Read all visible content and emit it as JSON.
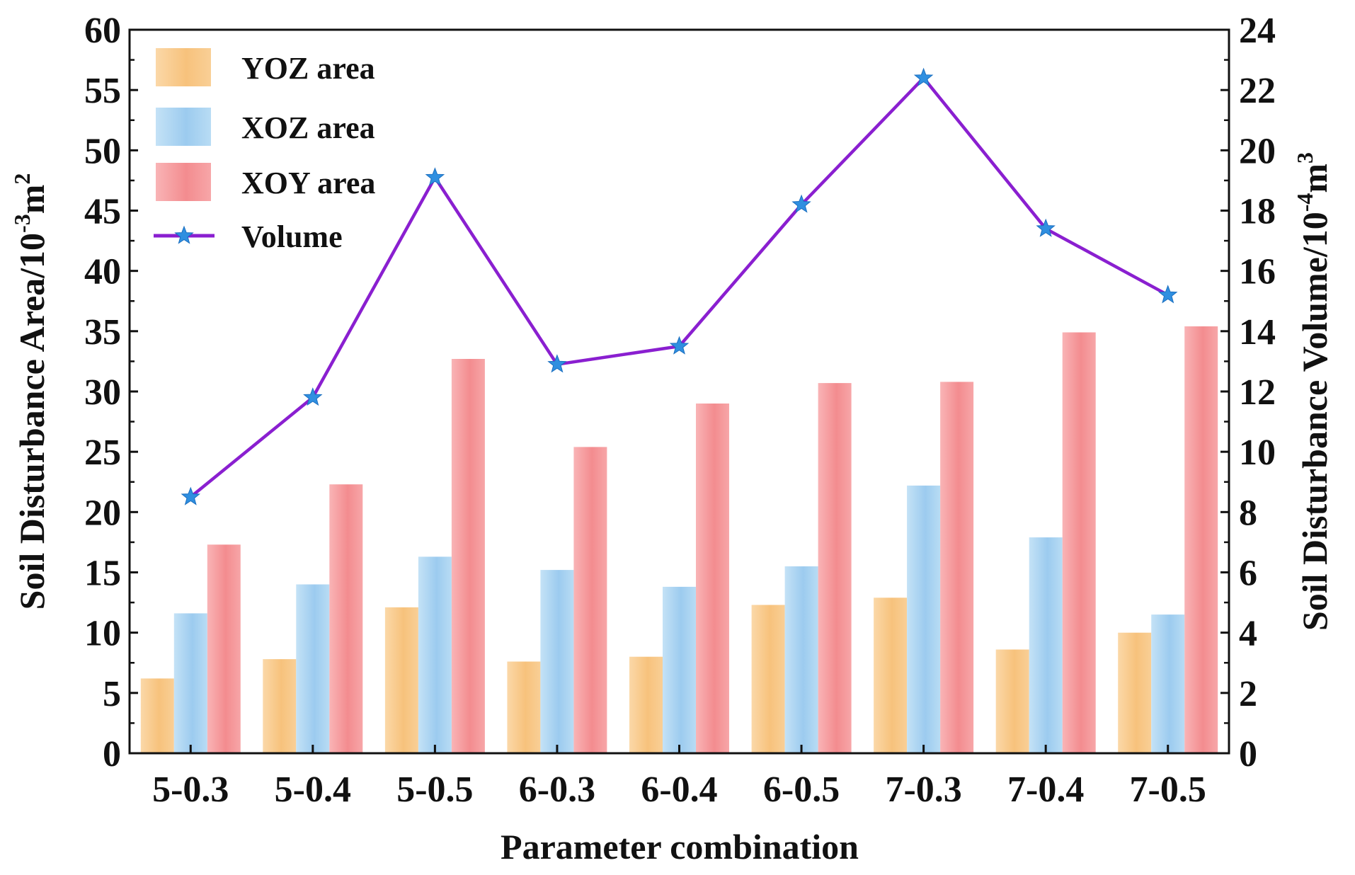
{
  "chart_data": {
    "type": "bar",
    "xlabel": "Parameter combination",
    "ylabel": "Soil Disturbance Area/10",
    "ylabel_exp": "-3",
    "ylabel_unit": "m",
    "ylabel_unit_exp": "2",
    "y2label": "Soil Disturbance Volume/10",
    "y2label_exp": "-4",
    "y2label_unit": "m",
    "y2label_unit_exp": "3",
    "ylim": [
      0,
      60
    ],
    "y2lim": [
      0,
      24
    ],
    "yticks": [
      "0",
      "5",
      "10",
      "15",
      "20",
      "25",
      "30",
      "35",
      "40",
      "45",
      "50",
      "55",
      "60"
    ],
    "y2ticks": [
      "0",
      "2",
      "4",
      "6",
      "8",
      "10",
      "12",
      "14",
      "16",
      "18",
      "20",
      "22",
      "24"
    ],
    "categories": [
      "5-0.3",
      "5-0.4",
      "5-0.5",
      "6-0.3",
      "6-0.4",
      "6-0.5",
      "7-0.3",
      "7-0.4",
      "7-0.5"
    ],
    "series": [
      {
        "name": "YOZ area",
        "kind": "bar",
        "axis": "left",
        "color": "#f9c98a",
        "values": [
          6.2,
          7.8,
          12.1,
          7.6,
          8.0,
          12.3,
          12.9,
          8.6,
          10.0
        ]
      },
      {
        "name": "XOZ area",
        "kind": "bar",
        "axis": "left",
        "color": "#a9d3f0",
        "values": [
          11.6,
          14.0,
          16.3,
          15.2,
          13.8,
          15.5,
          22.2,
          17.9,
          11.5
        ]
      },
      {
        "name": "XOY area",
        "kind": "bar",
        "axis": "left",
        "color": "#f59a9c",
        "values": [
          17.3,
          22.3,
          32.7,
          25.4,
          29.0,
          30.7,
          30.8,
          34.9,
          35.4
        ]
      },
      {
        "name": "Volume",
        "kind": "line",
        "axis": "right",
        "color": "#8a1fd0",
        "marker_color": "#2f8fe0",
        "values": [
          8.5,
          11.8,
          19.1,
          12.9,
          13.5,
          18.2,
          22.4,
          17.4,
          15.2
        ]
      }
    ],
    "legend_position": "top-left",
    "grid": false
  }
}
